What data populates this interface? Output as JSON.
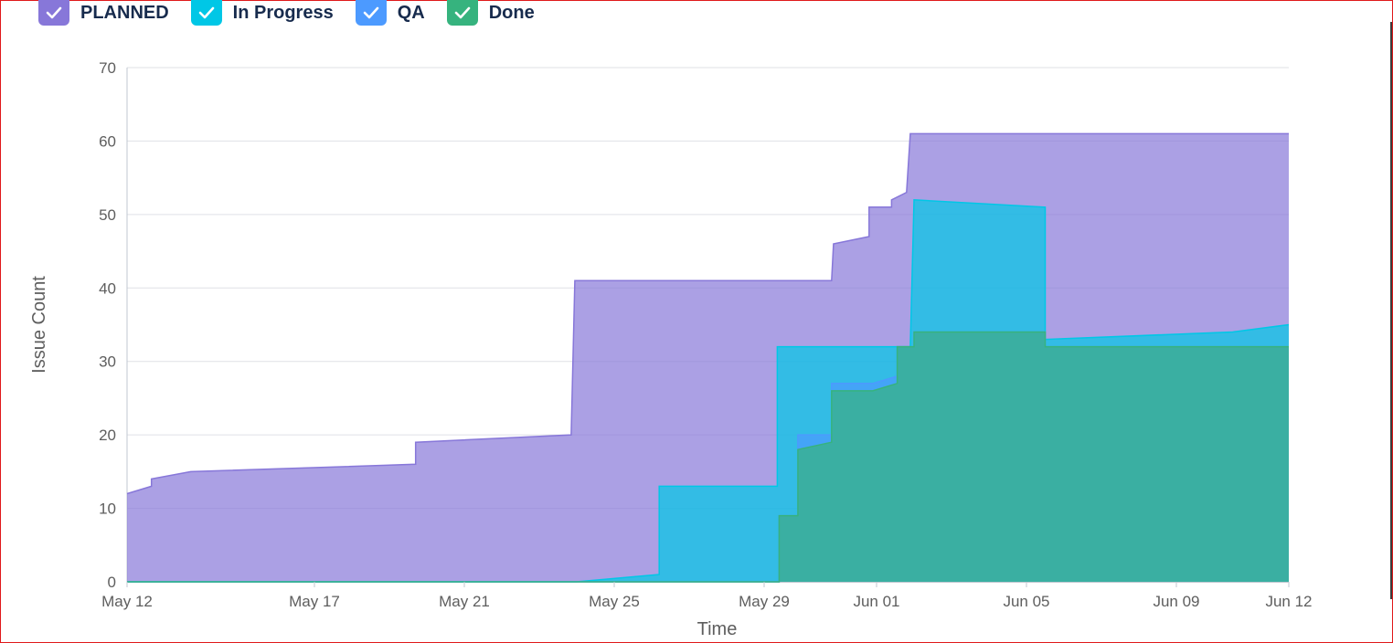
{
  "legend": [
    {
      "label": "PLANNED",
      "color": "#8777d9"
    },
    {
      "label": "In Progress",
      "color": "#00c7e6"
    },
    {
      "label": "QA",
      "color": "#4c9aff"
    },
    {
      "label": "Done",
      "color": "#36b37e"
    }
  ],
  "chart_data": {
    "type": "area",
    "stacked": true,
    "xlabel": "Time",
    "ylabel": "Issue Count",
    "ylim": [
      0,
      70
    ],
    "yticks": [
      0,
      10,
      20,
      30,
      40,
      50,
      60,
      70
    ],
    "xlim": [
      "May 12",
      "Jun 12"
    ],
    "xtick_labels": [
      "May 12",
      "May 17",
      "May 21",
      "May 25",
      "May 29",
      "Jun 01",
      "Jun 05",
      "Jun 09",
      "Jun 12"
    ],
    "xtick_days": [
      0,
      5,
      9,
      13,
      17,
      20,
      24,
      28,
      31
    ],
    "grid": true,
    "legend_position": "top-left",
    "series": [
      {
        "name": "Done",
        "color": "#36b37e",
        "points": [
          [
            0,
            0
          ],
          [
            17.4,
            0
          ],
          [
            17.4,
            9
          ],
          [
            17.9,
            9
          ],
          [
            17.9,
            18
          ],
          [
            18.8,
            19
          ],
          [
            18.8,
            26
          ],
          [
            19.9,
            26
          ],
          [
            20.55,
            27
          ],
          [
            20.55,
            32
          ],
          [
            21.0,
            32
          ],
          [
            21.0,
            34
          ],
          [
            24.5,
            34
          ],
          [
            24.5,
            32
          ],
          [
            31,
            32
          ]
        ]
      },
      {
        "name": "QA",
        "color": "#4c9aff",
        "points": [
          [
            0,
            0
          ],
          [
            17.4,
            0
          ],
          [
            17.4,
            9
          ],
          [
            17.9,
            9
          ],
          [
            17.9,
            20
          ],
          [
            18.8,
            20
          ],
          [
            18.8,
            27
          ],
          [
            19.9,
            27
          ],
          [
            20.55,
            28
          ],
          [
            20.55,
            32
          ],
          [
            21.0,
            32
          ],
          [
            21.0,
            34
          ],
          [
            24.5,
            34
          ],
          [
            24.5,
            32
          ],
          [
            31,
            32
          ]
        ]
      },
      {
        "name": "In Progress",
        "color": "#00c7e6",
        "points": [
          [
            0,
            0
          ],
          [
            12.0,
            0
          ],
          [
            14.2,
            1
          ],
          [
            14.2,
            13
          ],
          [
            17.35,
            13
          ],
          [
            17.35,
            32
          ],
          [
            20.9,
            32
          ],
          [
            21.0,
            52
          ],
          [
            24.5,
            51
          ],
          [
            24.5,
            33
          ],
          [
            29.5,
            34
          ],
          [
            31,
            35
          ]
        ]
      },
      {
        "name": "PLANNED",
        "color": "#8777d9",
        "points": [
          [
            0,
            12
          ],
          [
            0.65,
            13
          ],
          [
            0.65,
            14
          ],
          [
            1.7,
            15
          ],
          [
            7.7,
            16
          ],
          [
            7.7,
            19
          ],
          [
            11.85,
            20
          ],
          [
            11.95,
            41
          ],
          [
            18.8,
            41
          ],
          [
            18.85,
            46
          ],
          [
            19.8,
            47
          ],
          [
            19.8,
            51
          ],
          [
            20.4,
            51
          ],
          [
            20.4,
            52
          ],
          [
            20.8,
            53
          ],
          [
            20.9,
            61
          ],
          [
            31,
            61
          ]
        ]
      }
    ]
  }
}
